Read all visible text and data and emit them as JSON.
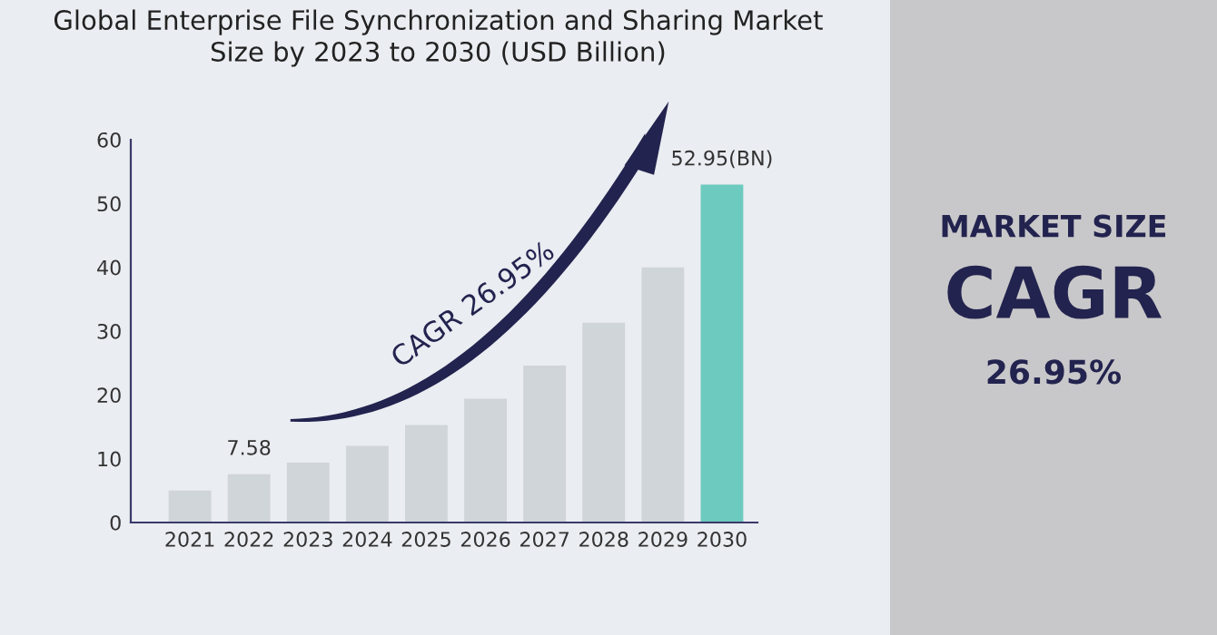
{
  "chart_data": {
    "type": "bar",
    "title": "Global Enterprise File Synchronization and Sharing Market\nSize by 2023 to 2030 (USD Billion)",
    "categories": [
      "2021",
      "2022",
      "2023",
      "2024",
      "2025",
      "2026",
      "2027",
      "2028",
      "2029",
      "2030"
    ],
    "values": [
      5.0,
      7.58,
      9.4,
      12.0,
      15.3,
      19.4,
      24.6,
      31.3,
      40.0,
      52.95
    ],
    "colors": [
      "#d0d5da",
      "#d0d5da",
      "#d0d5da",
      "#d0d5da",
      "#d0d5da",
      "#d0d5da",
      "#d0d5da",
      "#d0d5da",
      "#d0d5da",
      "#6dcabf"
    ],
    "value_labels": [
      null,
      "7.58",
      null,
      null,
      null,
      null,
      null,
      null,
      null,
      "52.95(BN)"
    ],
    "ylim": [
      0,
      60
    ],
    "yticks": [
      0,
      10,
      20,
      30,
      40,
      50,
      60
    ],
    "grid": false,
    "legend": false,
    "annotations": [
      "CAGR 26.95%",
      "MARKET SIZE",
      "CAGR",
      "26.95%"
    ]
  }
}
